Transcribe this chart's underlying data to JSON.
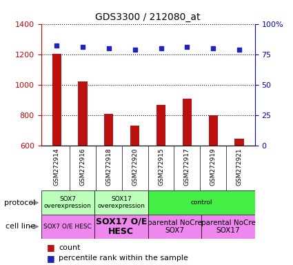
{
  "title": "GDS3300 / 212080_at",
  "samples": [
    "GSM272914",
    "GSM272916",
    "GSM272918",
    "GSM272920",
    "GSM272915",
    "GSM272917",
    "GSM272919",
    "GSM272921"
  ],
  "counts": [
    1205,
    1020,
    810,
    730,
    870,
    910,
    800,
    645
  ],
  "percentiles": [
    82,
    81,
    80,
    79,
    80,
    81,
    80,
    79
  ],
  "ylim_left": [
    600,
    1400
  ],
  "ylim_right": [
    0,
    100
  ],
  "yticks_left": [
    600,
    800,
    1000,
    1200,
    1400
  ],
  "yticks_right": [
    0,
    25,
    50,
    75,
    100
  ],
  "bar_color": "#bb1111",
  "dot_color": "#2222bb",
  "bar_width": 0.35,
  "protocol_groups": [
    {
      "label": "SOX7\noverexpression",
      "start": 0,
      "end": 2,
      "color": "#bbffbb"
    },
    {
      "label": "SOX17\noverexpression",
      "start": 2,
      "end": 4,
      "color": "#bbffbb"
    },
    {
      "label": "control",
      "start": 4,
      "end": 8,
      "color": "#44ee44"
    }
  ],
  "cellline_groups": [
    {
      "label": "SOX7 O/E HESC",
      "start": 0,
      "end": 2,
      "color": "#ee88ee",
      "fontsize": 6.5,
      "bold": false
    },
    {
      "label": "SOX17 O/E\nHESC",
      "start": 2,
      "end": 4,
      "color": "#ee88ee",
      "fontsize": 9,
      "bold": true
    },
    {
      "label": "parental NoCre\nSOX7",
      "start": 4,
      "end": 6,
      "color": "#ee88ee",
      "fontsize": 7.5,
      "bold": false
    },
    {
      "label": "parental NoCre\nSOX17",
      "start": 6,
      "end": 8,
      "color": "#ee88ee",
      "fontsize": 7.5,
      "bold": false
    }
  ],
  "legend_items": [
    {
      "color": "#bb1111",
      "label": "count"
    },
    {
      "color": "#2222bb",
      "label": "percentile rank within the sample"
    }
  ],
  "left_tick_color": "#cc0000",
  "right_tick_color": "#0000cc",
  "tick_area_color": "#cccccc",
  "grid_linestyle": "dotted",
  "background_color": "#ffffff"
}
